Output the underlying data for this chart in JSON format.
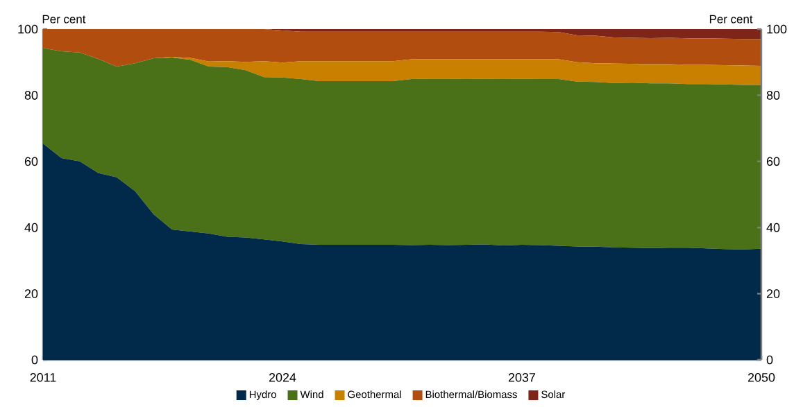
{
  "chart_data": {
    "type": "area",
    "stacked": true,
    "annotations": [
      "Per cent",
      "Per cent"
    ],
    "x": [
      2011,
      2012,
      2013,
      2014,
      2015,
      2016,
      2017,
      2018,
      2019,
      2020,
      2021,
      2022,
      2023,
      2024,
      2025,
      2026,
      2027,
      2028,
      2029,
      2030,
      2031,
      2032,
      2033,
      2034,
      2035,
      2036,
      2037,
      2038,
      2039,
      2040,
      2041,
      2042,
      2043,
      2044,
      2045,
      2046,
      2047,
      2048,
      2049,
      2050
    ],
    "xlim": [
      2011,
      2050
    ],
    "xticks": [
      2011,
      2024,
      2037,
      2050
    ],
    "ylim": [
      0,
      100
    ],
    "yticks": [
      0,
      20,
      40,
      60,
      80,
      100
    ],
    "y2lim": [
      0,
      100
    ],
    "y2ticks": [
      0,
      20,
      40,
      60,
      80,
      100
    ],
    "legend": "bottom",
    "series": [
      {
        "name": "Hydro",
        "color": "#00294a",
        "values": [
          65.4,
          61.0,
          60.0,
          56.5,
          55.2,
          51.0,
          44.0,
          39.4,
          38.8,
          38.2,
          37.2,
          37.0,
          36.4,
          35.8,
          35.0,
          34.8,
          34.8,
          34.8,
          34.8,
          34.8,
          34.7,
          34.8,
          34.7,
          34.8,
          34.9,
          34.6,
          34.8,
          34.7,
          34.5,
          34.3,
          34.2,
          34.0,
          33.9,
          33.8,
          33.9,
          33.9,
          33.7,
          33.5,
          33.4,
          33.6
        ]
      },
      {
        "name": "Wind",
        "color": "#4a7118",
        "values": [
          28.9,
          32.3,
          32.9,
          34.5,
          33.5,
          38.7,
          47.2,
          52.0,
          51.9,
          50.5,
          51.3,
          50.6,
          49.1,
          49.6,
          49.9,
          49.5,
          49.5,
          49.5,
          49.5,
          49.5,
          50.2,
          50.2,
          50.3,
          50.1,
          50.1,
          50.3,
          50.2,
          50.2,
          50.4,
          49.8,
          49.8,
          49.7,
          49.9,
          49.8,
          49.7,
          49.5,
          49.7,
          49.8,
          49.7,
          49.5
        ]
      },
      {
        "name": "Geothermal",
        "color": "#c97f00",
        "values": [
          0,
          0,
          0,
          0,
          0,
          0,
          0,
          0.2,
          0.6,
          1.5,
          1.8,
          2.5,
          4.8,
          4.5,
          5.4,
          6.0,
          6.0,
          6.0,
          6.0,
          6.0,
          6.0,
          5.9,
          5.9,
          6.0,
          5.9,
          6.0,
          5.9,
          6.0,
          6.0,
          5.9,
          5.7,
          5.9,
          5.7,
          5.8,
          5.8,
          5.8,
          5.8,
          5.8,
          5.9,
          5.8
        ]
      },
      {
        "name": "Biothermal/Biomass",
        "color": "#b14e0f",
        "values": [
          5.7,
          6.7,
          7.1,
          9.0,
          11.3,
          10.3,
          8.8,
          8.4,
          8.7,
          9.8,
          9.7,
          9.9,
          9.7,
          9.7,
          8.9,
          8.9,
          8.9,
          8.9,
          8.9,
          8.9,
          8.3,
          8.3,
          8.3,
          8.3,
          8.3,
          8.3,
          8.3,
          8.3,
          8.2,
          8.1,
          8.3,
          7.9,
          7.9,
          7.9,
          8.0,
          8.0,
          8.0,
          8.0,
          8.0,
          8.1
        ]
      },
      {
        "name": "Solar",
        "color": "#7f2418",
        "values": [
          0,
          0,
          0,
          0,
          0,
          0,
          0,
          0,
          0,
          0,
          0,
          0,
          0,
          0.4,
          0.8,
          0.8,
          0.8,
          0.8,
          0.8,
          0.8,
          0.8,
          0.8,
          0.8,
          0.8,
          0.8,
          0.8,
          0.8,
          0.8,
          0.9,
          1.9,
          2.0,
          2.5,
          2.6,
          2.7,
          2.7,
          2.8,
          2.8,
          2.9,
          3.0,
          3.0
        ]
      }
    ]
  }
}
